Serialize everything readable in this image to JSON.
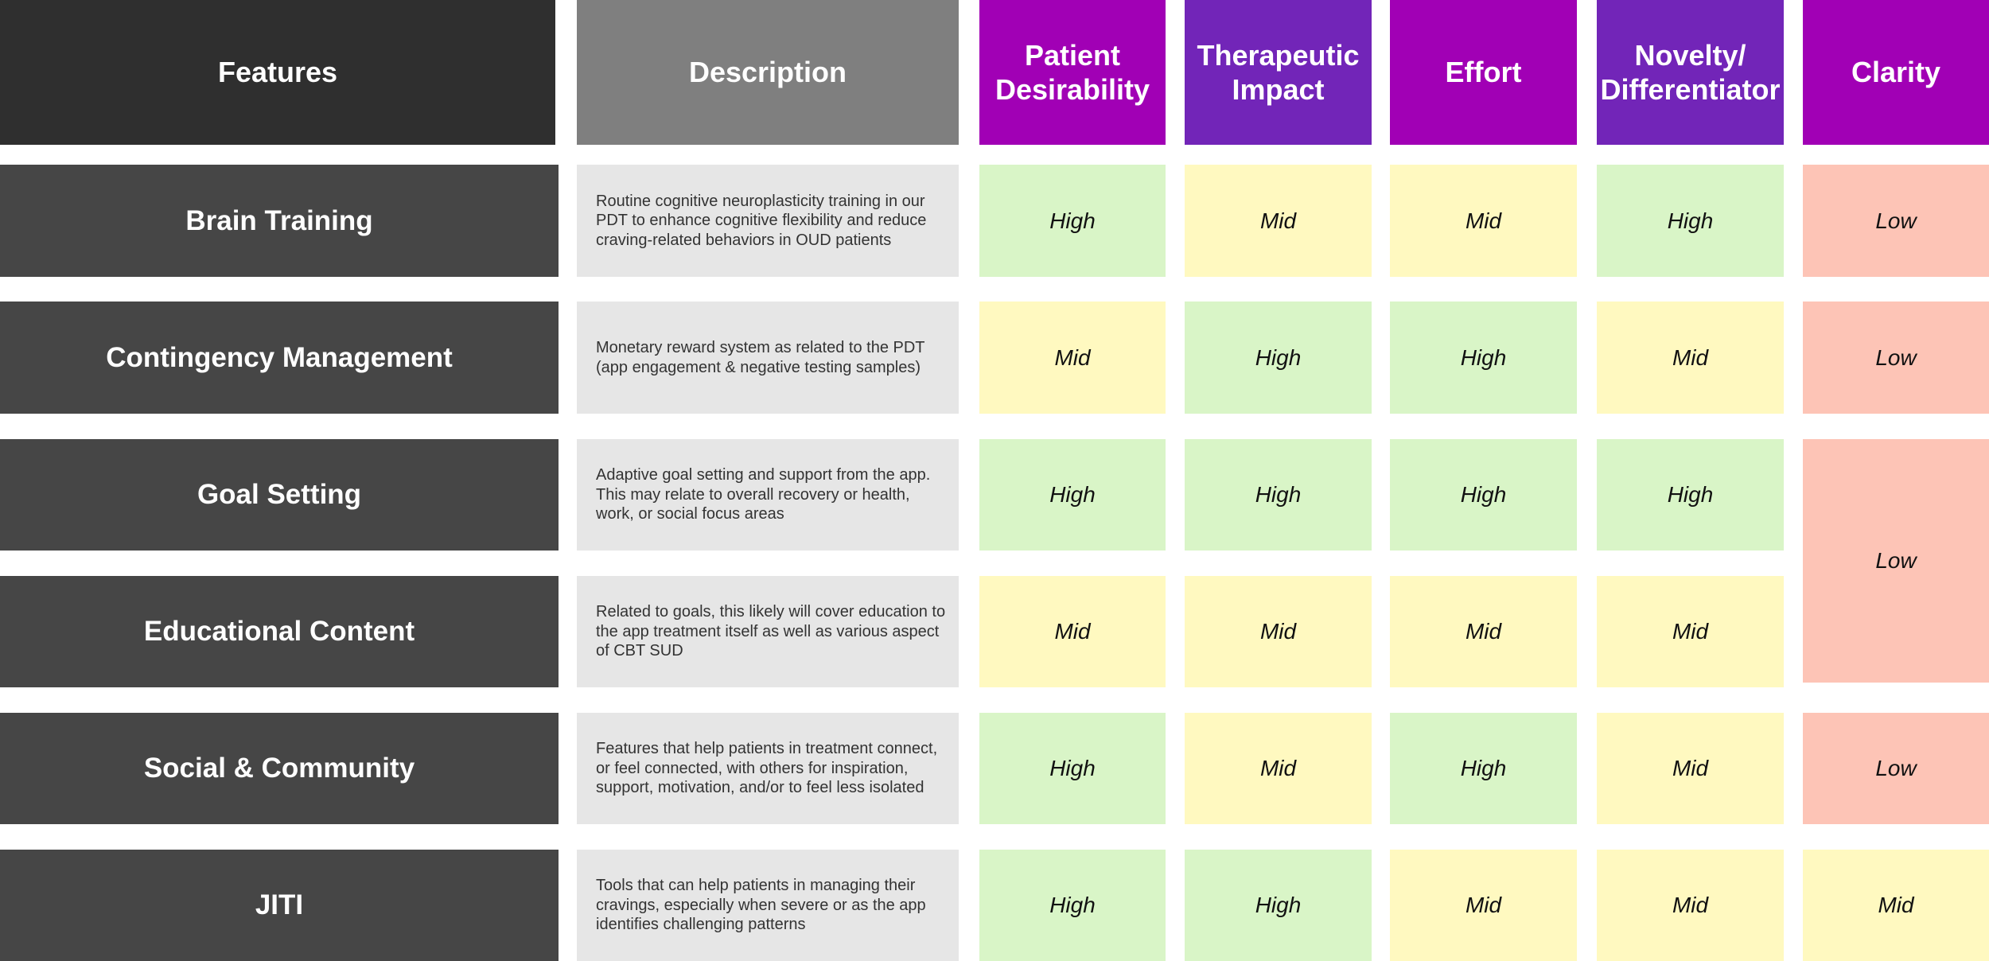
{
  "table": {
    "headers": [
      "Features",
      "Description",
      "Patient Desirability",
      "Therapeutic Impact",
      "Effort",
      "Novelty/ Differentiator",
      "Clarity"
    ],
    "rows": [
      {
        "feature": "Brain Training",
        "description": "Routine cognitive neuroplasticity training in our PDT to enhance cognitive flexibility and reduce craving-related behaviors in OUD patients",
        "ratings": [
          {
            "text": "High",
            "color": "#d9f5c7"
          },
          {
            "text": "Mid",
            "color": "#fff9c0"
          },
          {
            "text": "Mid",
            "color": "#fff9c0"
          },
          {
            "text": "High",
            "color": "#d9f5c7"
          }
        ]
      },
      {
        "feature": "Contingency Management",
        "description": "Monetary reward system as related to the PDT (app engagement & negative testing samples)",
        "ratings": [
          {
            "text": "Mid",
            "color": "#fff9c0"
          },
          {
            "text": "High",
            "color": "#d9f5c7"
          },
          {
            "text": "High",
            "color": "#d9f5c7"
          },
          {
            "text": "Mid",
            "color": "#fff9c0"
          }
        ]
      },
      {
        "feature": "Goal Setting",
        "description": "Adaptive goal setting and support from the app. This may relate to overall recovery or health, work, or social focus areas",
        "ratings": [
          {
            "text": "High",
            "color": "#d9f5c7"
          },
          {
            "text": "High",
            "color": "#d9f5c7"
          },
          {
            "text": "High",
            "color": "#d9f5c7"
          },
          {
            "text": "High",
            "color": "#d9f5c7"
          }
        ]
      },
      {
        "feature": "Educational Content",
        "description": "Related to goals, this likely will cover education to the app treatment itself as well as various aspect of CBT SUD",
        "ratings": [
          {
            "text": "Mid",
            "color": "#fff9c0"
          },
          {
            "text": "Mid",
            "color": "#fff9c0"
          },
          {
            "text": "Mid",
            "color": "#fff9c0"
          },
          {
            "text": "Mid",
            "color": "#fff9c0"
          }
        ]
      },
      {
        "feature": "Social & Community",
        "description": "Features that help patients in treatment connect, or feel connected, with others for inspiration, support, motivation, and/or to feel less isolated",
        "ratings": [
          {
            "text": "High",
            "color": "#d9f5c7"
          },
          {
            "text": "Mid",
            "color": "#fff9c0"
          },
          {
            "text": "High",
            "color": "#d9f5c7"
          },
          {
            "text": "Mid",
            "color": "#fff9c0"
          }
        ]
      },
      {
        "feature": "JITI",
        "description": "Tools that can help patients in managing their cravings, especially when severe or as the app identifies challenging patterns",
        "ratings": [
          {
            "text": "High",
            "color": "#d9f5c7"
          },
          {
            "text": "High",
            "color": "#d9f5c7"
          },
          {
            "text": "Mid",
            "color": "#fff9c0"
          },
          {
            "text": "Mid",
            "color": "#fff9c0"
          }
        ]
      }
    ],
    "clarity": [
      {
        "text": "Low",
        "color": "#fdc4b6"
      },
      {
        "text": "Low",
        "color": "#fdc4b6"
      },
      {
        "text": "Low",
        "color": "#fdc4b6"
      },
      {
        "text": "Low",
        "color": "#fdc4b6"
      },
      {
        "text": "Mid",
        "color": "#fff9c0"
      }
    ]
  }
}
